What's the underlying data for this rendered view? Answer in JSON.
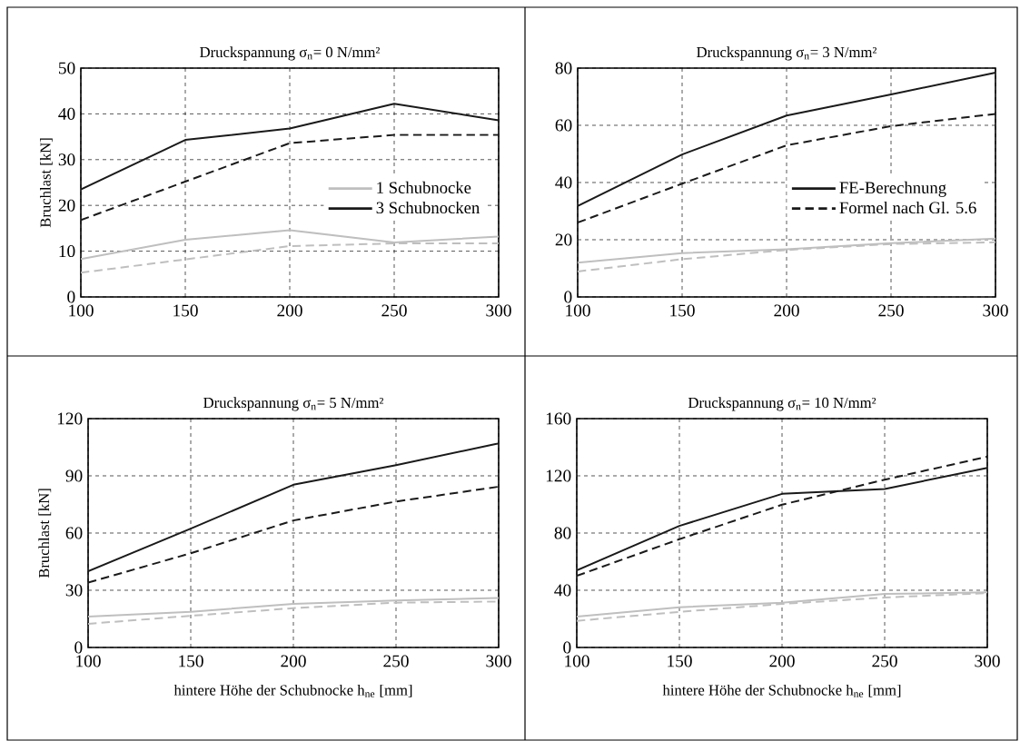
{
  "chart_data": [
    {
      "type": "line",
      "title": "Druckspannung σ$_{n}$= 0 N/mm²",
      "ylabel": "Bruchlast [kN]",
      "x": [
        100,
        150,
        200,
        250,
        300
      ],
      "xlim": [
        100,
        300
      ],
      "xticks": [
        100,
        150,
        200,
        250,
        300
      ],
      "ylim": [
        0,
        50
      ],
      "yticks": [
        0,
        10,
        20,
        30,
        40,
        50
      ],
      "grid": true,
      "legend": "right",
      "series": [
        {
          "name": "1 Schubnocke",
          "color": "#bfbfbf",
          "line_style": "solid",
          "values": [
            8.3,
            12.5,
            14.6,
            11.9,
            13.2
          ]
        },
        {
          "color": "#bfbfbf",
          "line_style": "dashed",
          "values": [
            5.3,
            8.2,
            11.1,
            11.7,
            11.7
          ]
        },
        {
          "name": "3 Schubnocken",
          "color": "#1a1a1a",
          "line_style": "solid",
          "values": [
            23.5,
            34.3,
            36.8,
            42.2,
            38.6
          ]
        },
        {
          "color": "#1a1a1a",
          "line_style": "dashed",
          "values": [
            16.8,
            25.2,
            33.6,
            35.4,
            35.4
          ]
        }
      ]
    },
    {
      "type": "line",
      "title": "Druckspannung σ$_{n}$= 3 N/mm²",
      "x": [
        100,
        150,
        200,
        250,
        300
      ],
      "xlim": [
        100,
        300
      ],
      "xticks": [
        100,
        150,
        200,
        250,
        300
      ],
      "ylim": [
        0,
        80
      ],
      "yticks": [
        0,
        20,
        40,
        60,
        80
      ],
      "grid": true,
      "legend": "right",
      "series": [
        {
          "color": "#bfbfbf",
          "line_style": "solid",
          "values": [
            12.0,
            15.3,
            16.7,
            18.8,
            20.4
          ]
        },
        {
          "color": "#bfbfbf",
          "line_style": "dashed",
          "values": [
            8.9,
            13.2,
            16.4,
            18.5,
            19.1
          ]
        },
        {
          "name": "FE-Berechnung",
          "color": "#1a1a1a",
          "line_style": "solid",
          "values": [
            31.8,
            49.8,
            63.4,
            70.8,
            78.4
          ]
        },
        {
          "name": "Formel nach Gl. 5.6",
          "color": "#1a1a1a",
          "line_style": "dashed",
          "values": [
            26.0,
            39.6,
            53.0,
            59.7,
            64.0
          ]
        }
      ]
    },
    {
      "type": "line",
      "title": "Druckspannung σ$_{n}$= 5 N/mm²",
      "ylabel": "Bruchlast [kN]",
      "xlabel": "hintere Höhe der Schubnocke h$_{ne}$ [mm]",
      "x": [
        100,
        150,
        200,
        250,
        300
      ],
      "xlim": [
        100,
        300
      ],
      "xticks": [
        100,
        150,
        200,
        250,
        300
      ],
      "ylim": [
        0,
        120
      ],
      "yticks": [
        0,
        30,
        60,
        90,
        120
      ],
      "grid": true,
      "series": [
        {
          "color": "#bfbfbf",
          "line_style": "solid",
          "values": [
            16.2,
            18.7,
            22.8,
            24.6,
            26.0
          ]
        },
        {
          "color": "#bfbfbf",
          "line_style": "dashed",
          "values": [
            12.4,
            16.6,
            20.6,
            23.5,
            24.1
          ]
        },
        {
          "color": "#1a1a1a",
          "line_style": "solid",
          "values": [
            40.0,
            62.3,
            85.3,
            95.6,
            107.0
          ]
        },
        {
          "color": "#1a1a1a",
          "line_style": "dashed",
          "values": [
            34.0,
            49.4,
            66.6,
            76.5,
            84.3
          ]
        }
      ]
    },
    {
      "type": "line",
      "title": "Druckspannung σ$_{n}$= 10 N/mm²",
      "xlabel": "hintere Höhe der Schubnocke h$_{ne}$ [mm]",
      "x": [
        100,
        150,
        200,
        250,
        300
      ],
      "xlim": [
        100,
        300
      ],
      "xticks": [
        100,
        150,
        200,
        250,
        300
      ],
      "ylim": [
        0,
        160
      ],
      "yticks": [
        0,
        40,
        80,
        120,
        160
      ],
      "grid": true,
      "series": [
        {
          "color": "#bfbfbf",
          "line_style": "solid",
          "values": [
            21.6,
            28.1,
            31.3,
            37.4,
            38.5
          ]
        },
        {
          "color": "#bfbfbf",
          "line_style": "dashed",
          "values": [
            18.6,
            24.9,
            30.4,
            34.9,
            38.0
          ]
        },
        {
          "color": "#1a1a1a",
          "line_style": "solid",
          "values": [
            53.9,
            85.0,
            107.4,
            110.8,
            125.6
          ]
        },
        {
          "color": "#1a1a1a",
          "line_style": "dashed",
          "values": [
            50.1,
            75.7,
            99.8,
            117.3,
            133.4
          ]
        }
      ]
    }
  ]
}
